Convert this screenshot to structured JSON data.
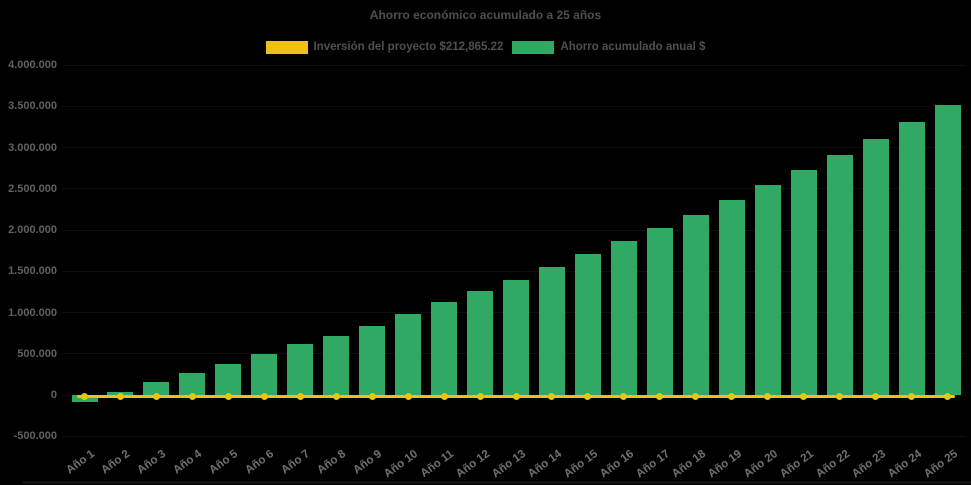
{
  "title": "Ahorro económico acumulado a 25 años",
  "colors": {
    "background": "#000000",
    "bar_green": "#2fa963",
    "line_yellow": "#edc213",
    "title_text": "#4f4f4f",
    "y_axis_text": "#616161",
    "x_axis_text": "#717171",
    "gridline": "#0e0e0e"
  },
  "legend": {
    "items": [
      {
        "label": "Inversión del proyecto $212,865.22",
        "color": "#edc213",
        "series_type": "line"
      },
      {
        "label": "Ahorro acumulado anual $",
        "color": "#2fa963",
        "series_type": "bar"
      }
    ]
  },
  "y_axis": {
    "tick_labels": [
      "4.000.000",
      "3.500.000",
      "3.000.000",
      "2.500.000",
      "2.000.000",
      "1.500.000",
      "1.000.000",
      "500.000",
      "0",
      "-500.000"
    ],
    "tick_values": [
      4000000,
      3500000,
      3000000,
      2500000,
      2000000,
      1500000,
      1000000,
      500000,
      0,
      -500000
    ]
  },
  "chart_data": {
    "type": "bar",
    "title": "Ahorro económico acumulado a 25 años",
    "categories": [
      "Año 1",
      "Año 2",
      "Año 3",
      "Año 4",
      "Año 5",
      "Año 6",
      "Año 7",
      "Año 8",
      "Año 9",
      "Año 10",
      "Año 11",
      "Año 12",
      "Año 13",
      "Año 14",
      "Año 15",
      "Año 16",
      "Año 17",
      "Año 18",
      "Año 19",
      "Año 20",
      "Año 21",
      "Año 22",
      "Año 23",
      "Año 24",
      "Año 25"
    ],
    "series": [
      {
        "name": "Ahorro acumulado anual $",
        "type": "bar",
        "color": "#2fa963",
        "values": [
          -80000,
          42000,
          157000,
          266000,
          379000,
          492000,
          613000,
          718000,
          839000,
          984000,
          1126000,
          1263000,
          1396000,
          1550000,
          1715000,
          1868000,
          2027000,
          2186000,
          2368000,
          2542000,
          2728000,
          2905000,
          3099000,
          3308000,
          3511000
        ]
      },
      {
        "name": "Inversión del proyecto $212,865.22",
        "type": "line",
        "color": "#edc213",
        "marker": "circle",
        "constant_plotted_value": 0,
        "investment_amount_label": "$212,865.22"
      }
    ],
    "ylim": [
      -500000,
      4000000
    ],
    "grid": true,
    "legend_position": "top",
    "x_tick_rotation_deg": -36
  }
}
